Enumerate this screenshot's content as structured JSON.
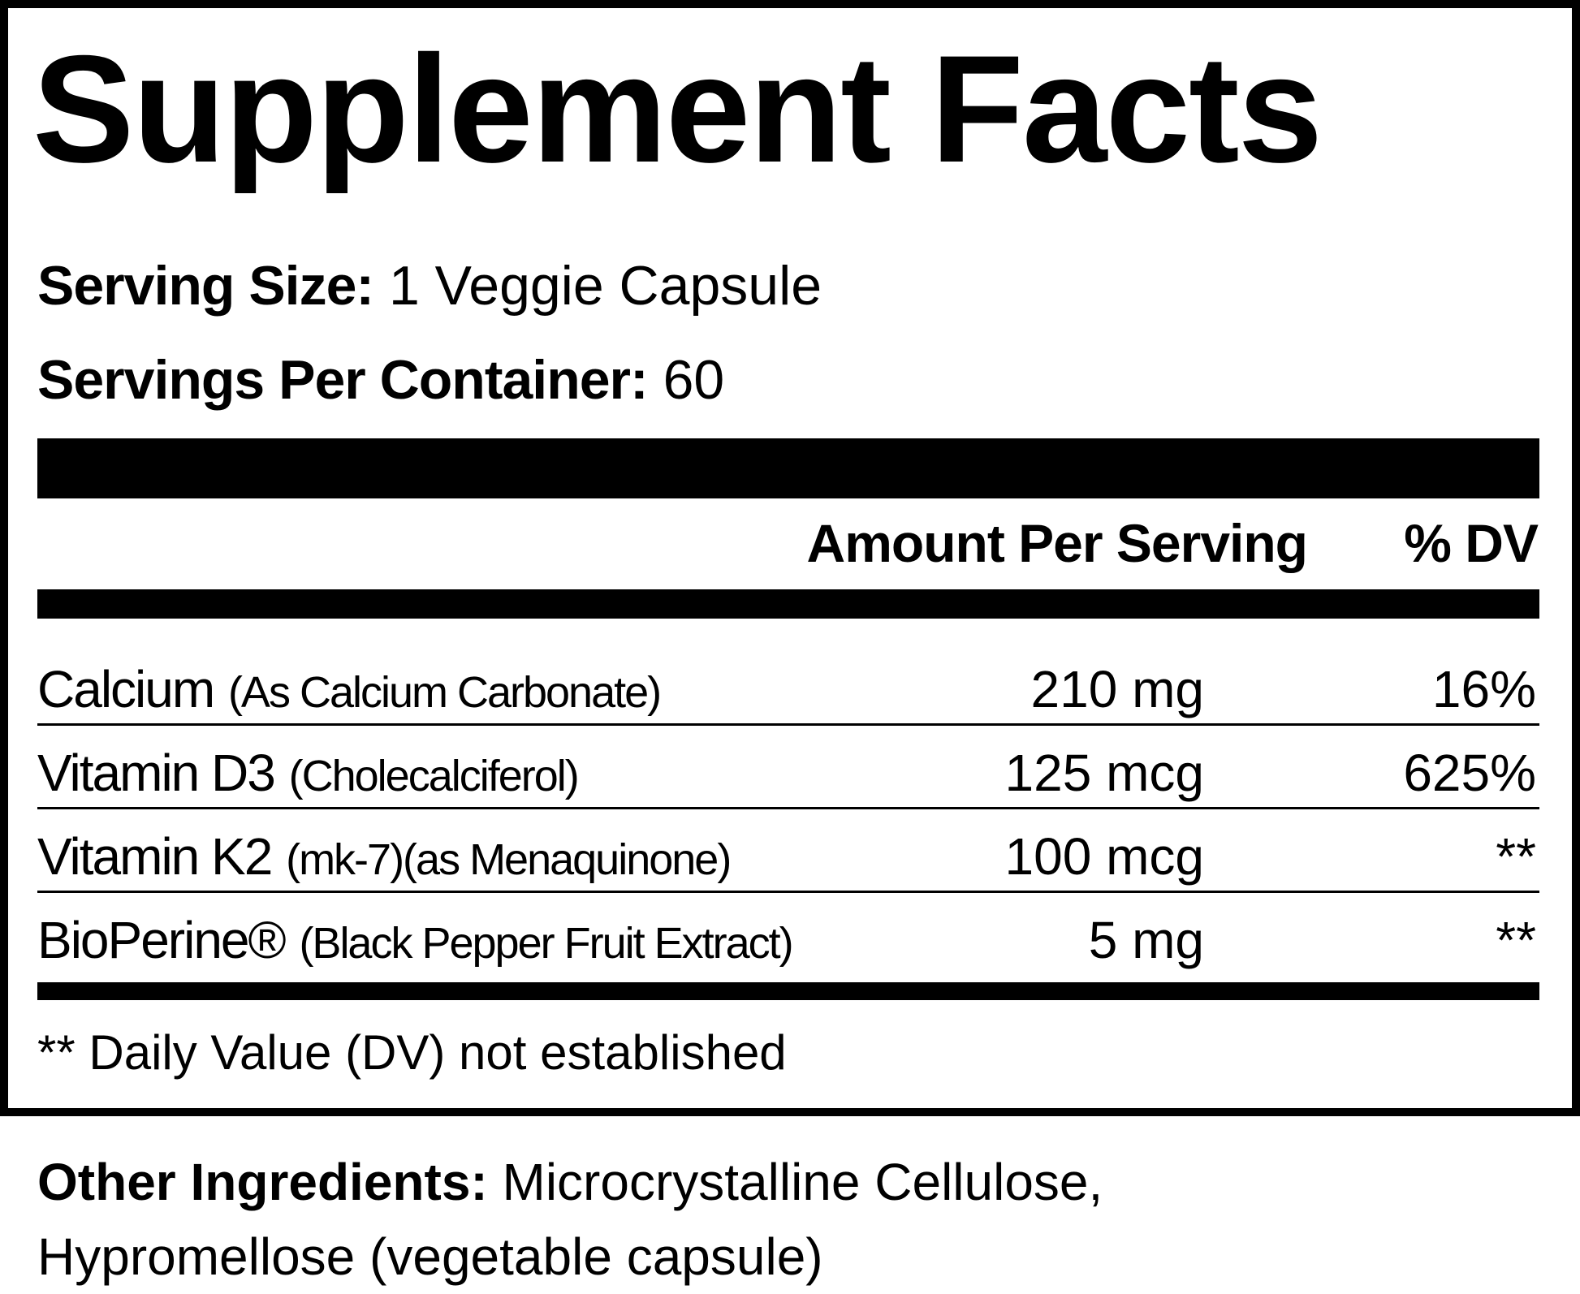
{
  "title": "Supplement Facts",
  "serving_size": {
    "label": "Serving Size:",
    "value": "1 Veggie Capsule"
  },
  "servings_per_container": {
    "label": "Servings Per Container:",
    "value": "60"
  },
  "header": {
    "amount": "Amount Per Serving",
    "dv": "% DV"
  },
  "rows": [
    {
      "name": "Calcium",
      "detail": "(As Calcium Carbonate)",
      "amount": "210 mg",
      "dv": "16%"
    },
    {
      "name": "Vitamin D3",
      "detail": "(Cholecalciferol)",
      "amount": "125 mcg",
      "dv": "625%"
    },
    {
      "name": "Vitamin K2",
      "detail": "(mk-7)(as Menaquinone)",
      "amount": "100 mcg",
      "dv": "**"
    },
    {
      "name": "BioPerine®",
      "detail": "(Black Pepper Fruit Extract)",
      "amount": "5 mg",
      "dv": "**"
    }
  ],
  "footnote": "** Daily Value (DV) not established",
  "other_ingredients": {
    "label": "Other Ingredients:",
    "text": "Microcrystalline Cellulose, Hypromellose (vegetable capsule)"
  }
}
